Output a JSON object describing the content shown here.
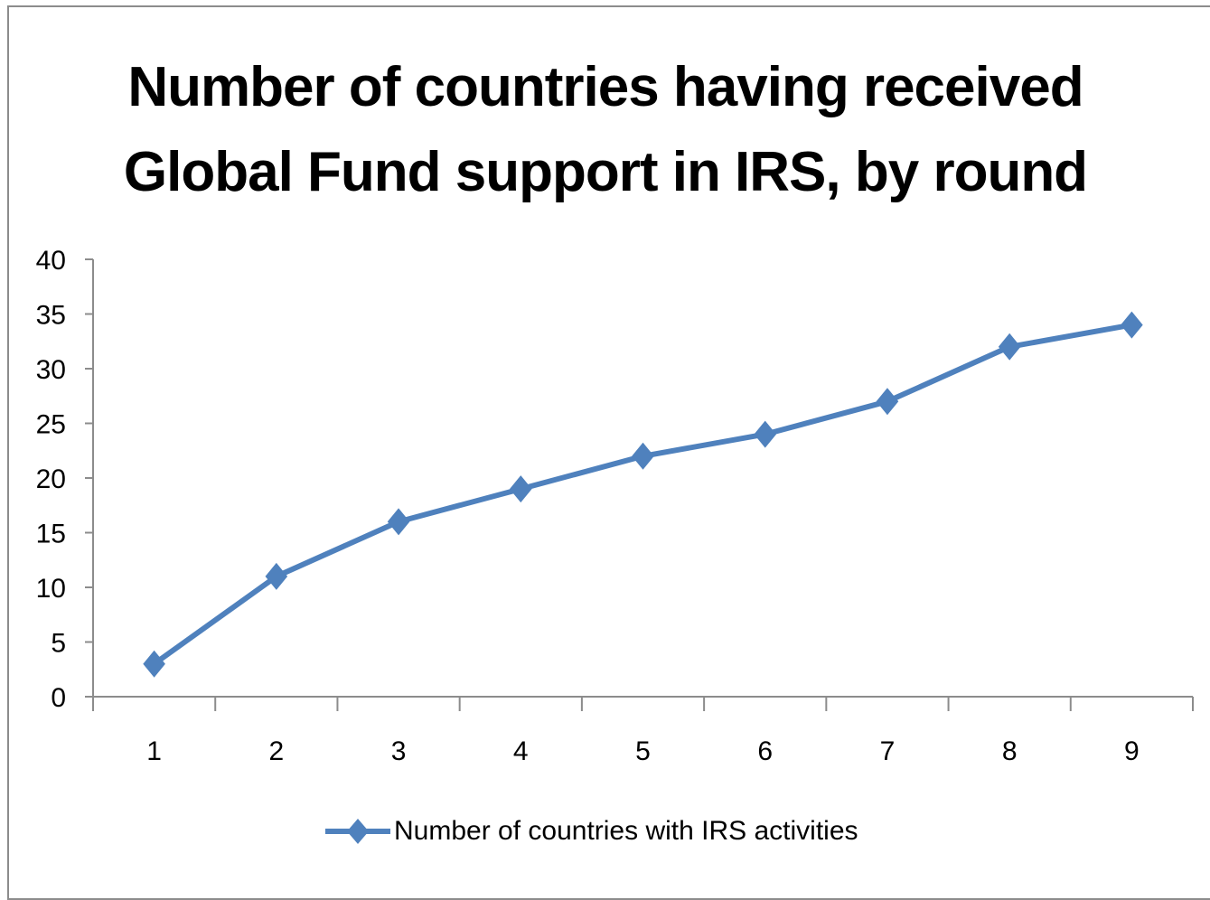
{
  "chart_data": {
    "type": "line",
    "title_lines": [
      "Number of  countries having received",
      "Global Fund support in IRS, by round"
    ],
    "xlabel": "",
    "ylabel": "",
    "categories": [
      "1",
      "2",
      "3",
      "4",
      "5",
      "6",
      "7",
      "8",
      "9"
    ],
    "ylim": [
      0,
      40
    ],
    "yticks": [
      0,
      5,
      10,
      15,
      20,
      25,
      30,
      35,
      40
    ],
    "grid": false,
    "legend_position": "bottom",
    "series": [
      {
        "name": "Number of  countries with IRS activities",
        "values": [
          3,
          11,
          16,
          19,
          22,
          24,
          27,
          32,
          34
        ],
        "color": "#4f81bd",
        "marker": "diamond"
      }
    ]
  }
}
